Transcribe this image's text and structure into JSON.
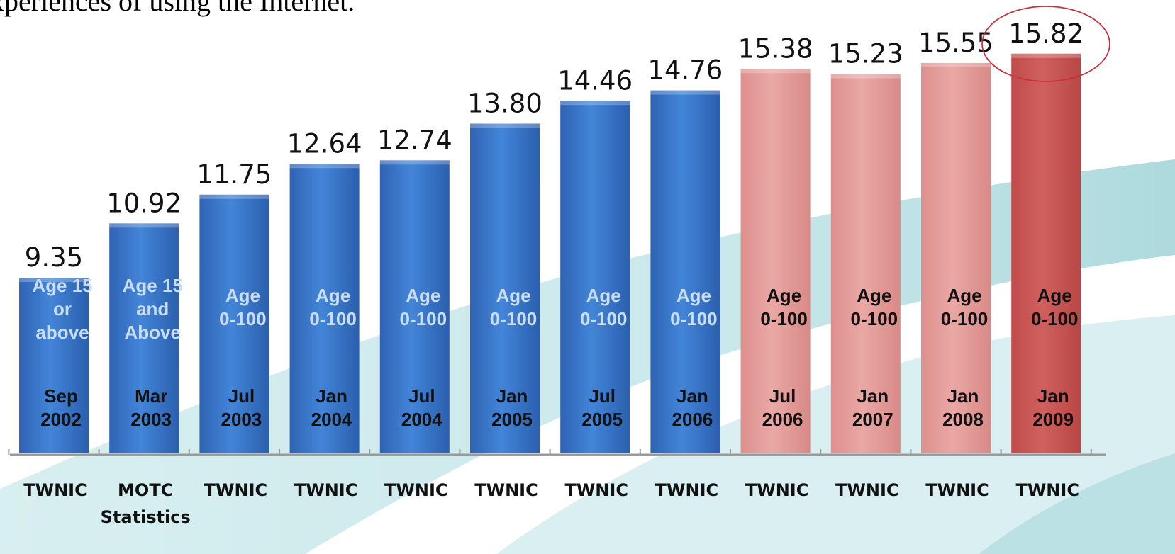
{
  "header": {
    "caption": "xperiences of using the Internet."
  },
  "colors": {
    "blue_bar": "#3b78cc",
    "pink_bar": "#e8a29f",
    "red_bar": "#cc5a58",
    "highlight_circle": "#c8313a",
    "axis": "#9a9a9a",
    "inside_label_blue": "#c9ddf6"
  },
  "chart_data": {
    "type": "bar",
    "categories": [
      "Sep 2002",
      "Mar 2003",
      "Jul 2003",
      "Jan 2004",
      "Jul 2004",
      "Jan 2005",
      "Jul 2005",
      "Jan 2006",
      "Jul 2006",
      "Jan 2007",
      "Jan 2008",
      "Jan 2009"
    ],
    "values": [
      9.35,
      10.92,
      11.75,
      12.64,
      12.74,
      13.8,
      14.46,
      14.76,
      15.38,
      15.23,
      15.55,
      15.82
    ],
    "value_labels": [
      "9.35",
      "10.92",
      "11.75",
      "12.64",
      "12.74",
      "13.80",
      "14.46",
      "14.76",
      "15.38",
      "15.23",
      "15.55",
      "15.82"
    ],
    "age_ranges": [
      [
        "Age 15",
        "or",
        "above"
      ],
      [
        "Age 15",
        "and",
        "Above"
      ],
      [
        "Age",
        "0-100"
      ],
      [
        "Age",
        "0-100"
      ],
      [
        "Age",
        "0-100"
      ],
      [
        "Age",
        "0-100"
      ],
      [
        "Age",
        "0-100"
      ],
      [
        "Age",
        "0-100"
      ],
      [
        "Age",
        "0-100"
      ],
      [
        "Age",
        "0-100"
      ],
      [
        "Age",
        "0-100"
      ],
      [
        "Age",
        "0-100"
      ]
    ],
    "date_labels": [
      [
        "Sep",
        "2002"
      ],
      [
        "Mar",
        "2003"
      ],
      [
        "Jul",
        "2003"
      ],
      [
        "Jan",
        "2004"
      ],
      [
        "Jul",
        "2004"
      ],
      [
        "Jan",
        "2005"
      ],
      [
        "Jul",
        "2005"
      ],
      [
        "Jan",
        "2006"
      ],
      [
        "Jul",
        "2006"
      ],
      [
        "Jan",
        "2007"
      ],
      [
        "Jan",
        "2008"
      ],
      [
        "Jan",
        "2009"
      ]
    ],
    "sources": [
      [
        "TWNIC"
      ],
      [
        "MOTC",
        "Statistics"
      ],
      [
        "TWNIC"
      ],
      [
        "TWNIC"
      ],
      [
        "TWNIC"
      ],
      [
        "TWNIC"
      ],
      [
        "TWNIC"
      ],
      [
        "TWNIC"
      ],
      [
        "TWNIC"
      ],
      [
        "TWNIC"
      ],
      [
        "TWNIC"
      ],
      [
        "TWNIC"
      ]
    ],
    "bar_styles": [
      "blue",
      "blue",
      "blue",
      "blue",
      "blue",
      "blue",
      "blue",
      "blue",
      "pink",
      "pink",
      "pink",
      "red"
    ],
    "highlighted": "Jan 2009",
    "grid": false,
    "legend": "none"
  }
}
